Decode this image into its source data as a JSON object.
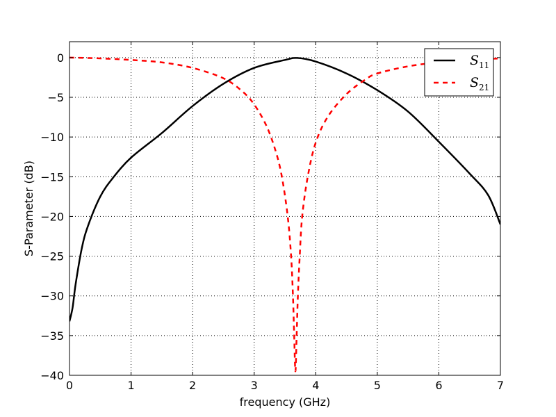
{
  "chart_data": {
    "type": "line",
    "title": "",
    "xlabel": "frequency (GHz)",
    "ylabel": "S-Parameter (dB)",
    "xlim": [
      0,
      7
    ],
    "ylim": [
      -40,
      2
    ],
    "xticks": [
      0,
      1,
      2,
      3,
      4,
      5,
      6,
      7
    ],
    "xtick_labels": [
      "0",
      "1",
      "2",
      "3",
      "4",
      "5",
      "6",
      "7"
    ],
    "yticks": [
      0,
      -5,
      -10,
      -15,
      -20,
      -25,
      -30,
      -35,
      -40
    ],
    "ytick_labels": [
      "0",
      "−5",
      "−10",
      "−15",
      "−20",
      "−25",
      "−30",
      "−35",
      "−40"
    ],
    "grid": true,
    "legend_position": "top-right",
    "series": [
      {
        "name": "S11",
        "label_main": "S",
        "label_sub": "11",
        "color": "#000000",
        "style": "solid",
        "x": [
          0,
          0.05,
          0.1,
          0.2,
          0.3,
          0.5,
          0.7,
          1.0,
          1.5,
          2.0,
          2.5,
          3.0,
          3.5,
          3.7,
          4.0,
          4.5,
          5.0,
          5.5,
          6.0,
          6.5,
          6.8,
          7.0
        ],
        "y": [
          -33.2,
          -31.5,
          -28.5,
          -24.0,
          -21.2,
          -17.5,
          -15.2,
          -12.6,
          -9.5,
          -6.1,
          -3.3,
          -1.3,
          -0.3,
          -0.05,
          -0.5,
          -2.0,
          -4.1,
          -6.8,
          -10.6,
          -14.6,
          -17.3,
          -21.0
        ]
      },
      {
        "name": "S21",
        "label_main": "S",
        "label_sub": "21",
        "color": "#ff0000",
        "style": "dashed",
        "x": [
          0,
          0.5,
          1.0,
          1.5,
          2.0,
          2.5,
          2.8,
          3.0,
          3.2,
          3.35,
          3.45,
          3.545,
          3.6,
          3.63,
          3.65,
          3.67,
          3.69,
          3.71,
          3.74,
          3.78,
          3.87,
          4.0,
          4.2,
          4.5,
          4.8,
          5.0,
          5.5,
          6.0,
          6.5,
          7.0
        ],
        "y": [
          0,
          -0.1,
          -0.3,
          -0.6,
          -1.3,
          -2.6,
          -4.2,
          -5.9,
          -8.6,
          -11.8,
          -15,
          -20,
          -25,
          -30,
          -35,
          -39.5,
          -35,
          -30,
          -25,
          -20,
          -15,
          -10.7,
          -7.4,
          -4.6,
          -2.8,
          -2.0,
          -1.1,
          -0.6,
          -0.3,
          -0.1
        ]
      }
    ]
  }
}
